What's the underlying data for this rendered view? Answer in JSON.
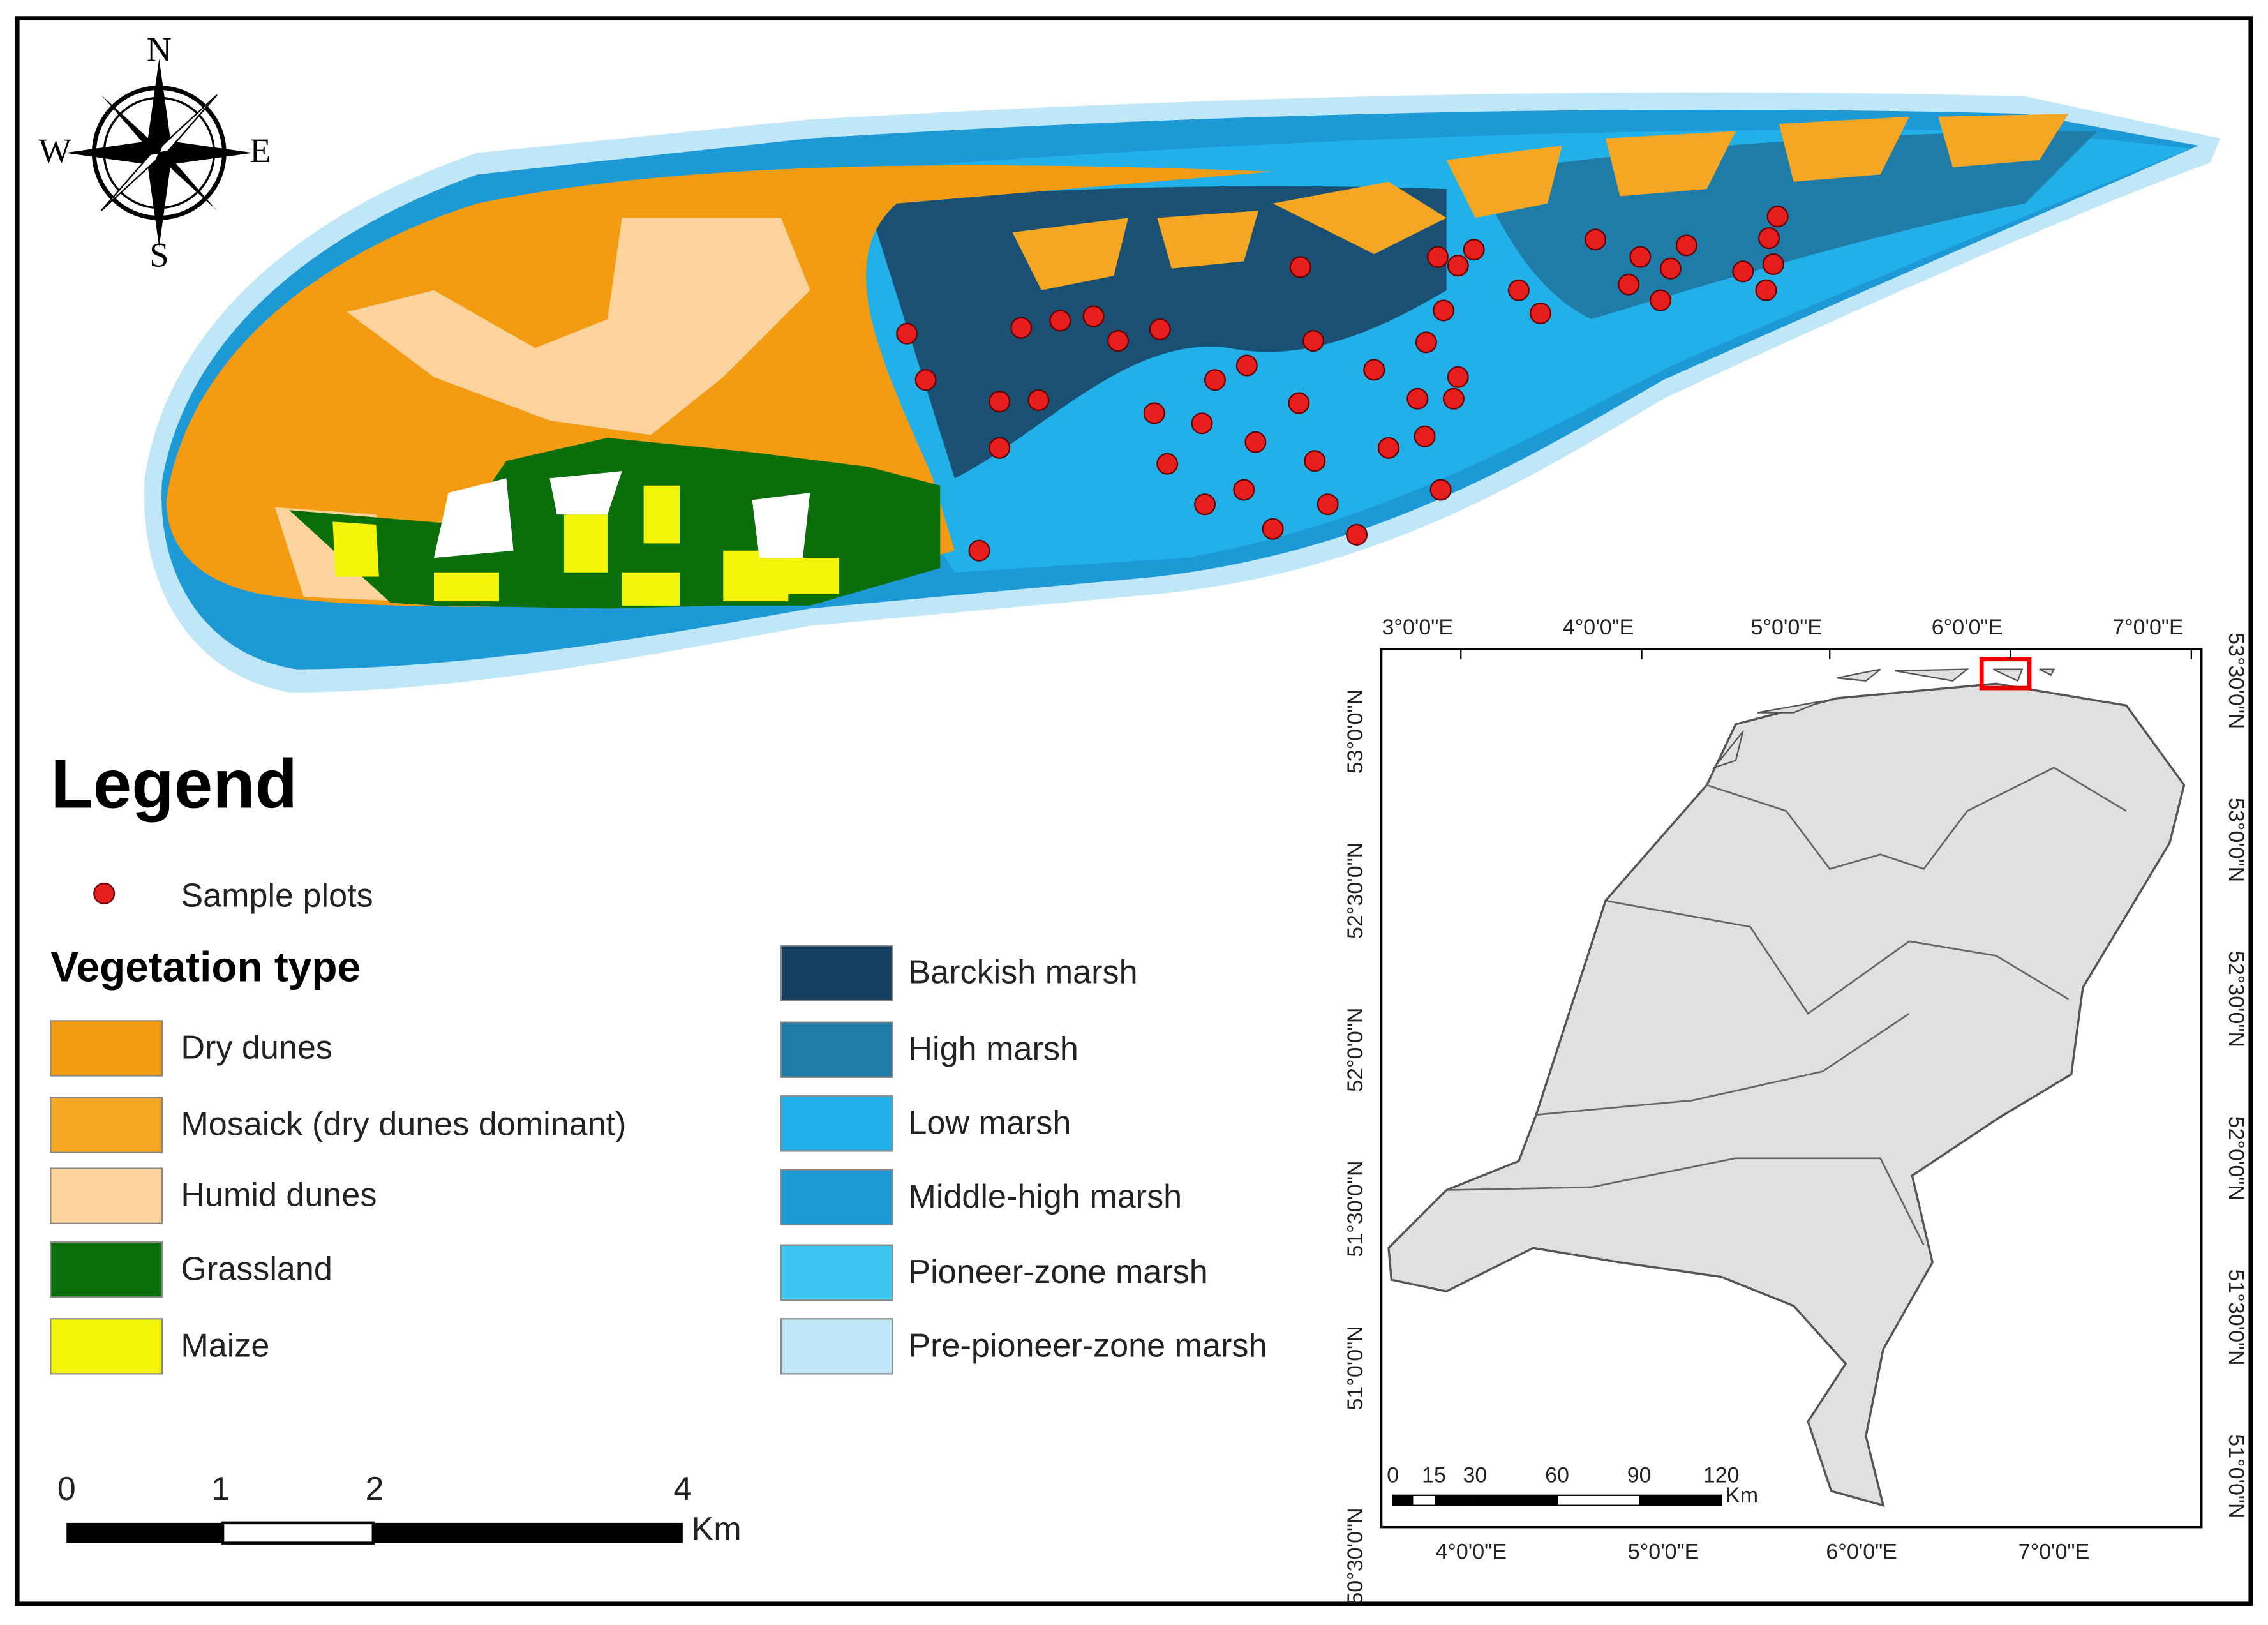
{
  "compass": {
    "north": "N",
    "south": "S",
    "west": "W",
    "east": "E"
  },
  "legend": {
    "title": "Legend",
    "sample_plots": "Sample plots",
    "section_title": "Vegetation type",
    "items_left": [
      {
        "label": "Dry dunes",
        "color": "#f39c12"
      },
      {
        "label": "Mosaick (dry dunes dominant)",
        "color": "#f5a623"
      },
      {
        "label": "Humid dunes",
        "color": "#fcd39c"
      },
      {
        "label": "Grassland",
        "color": "#0a6e0a"
      },
      {
        "label": "Maize",
        "color": "#f5f50a"
      }
    ],
    "items_right": [
      {
        "label": "Barckish marsh",
        "color": "#173f5f"
      },
      {
        "label": "High marsh",
        "color": "#1f7ca8"
      },
      {
        "label": "Low marsh",
        "color": "#22b0e8"
      },
      {
        "label": "Middle-high marsh",
        "color": "#1d9ad6"
      },
      {
        "label": "Pioneer-zone marsh",
        "color": "#3cc6f0"
      },
      {
        "label": "Pre-pioneer-zone marsh",
        "color": "#bfe7f7"
      }
    ]
  },
  "scale_bar": {
    "ticks": [
      0,
      1,
      2,
      4
    ],
    "unit": "Km"
  },
  "inset": {
    "top_ticks": [
      "3°0'0\"E",
      "4°0'0\"E",
      "5°0'0\"E",
      "6°0'0\"E",
      "7°0'0\"E"
    ],
    "bottom_ticks": [
      "4°0'0\"E",
      "5°0'0\"E",
      "6°0'0\"E",
      "7°0'0\"E"
    ],
    "left_ticks": [
      "50°30'0\"N",
      "51°0'0\"N",
      "51°30'0\"N",
      "52°0'0\"N",
      "52°30'0\"N",
      "53°0'0\"N"
    ],
    "right_ticks": [
      "51°0'0\"N",
      "51°30'0\"N",
      "52°0'0\"N",
      "52°30'0\"N",
      "53°0'0\"N",
      "53°30'0\"N"
    ],
    "scale_ticks": [
      0,
      15,
      30,
      60,
      90,
      120
    ],
    "scale_unit": "Km"
  }
}
